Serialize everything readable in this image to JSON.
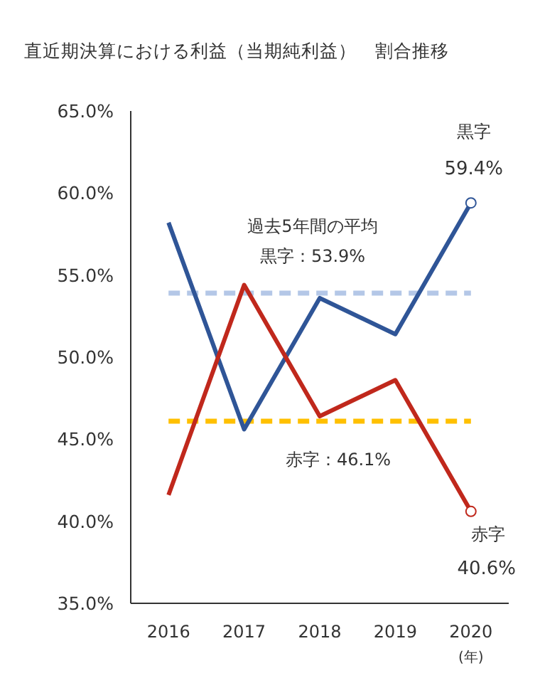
{
  "chart_data": {
    "type": "line",
    "title": "直近期決算における利益（当期純利益）　割合推移",
    "xlabel": "(年)",
    "categories": [
      "2016",
      "2017",
      "2018",
      "2019",
      "2020"
    ],
    "series": [
      {
        "name": "黒字",
        "color": "#2f5597",
        "values": [
          58.2,
          45.6,
          53.6,
          51.4,
          59.4
        ],
        "value_labels": [
          null,
          null,
          null,
          null,
          "59.4%"
        ]
      },
      {
        "name": "赤字",
        "color": "#c0281c",
        "values": [
          41.6,
          54.4,
          46.4,
          48.6,
          40.6
        ],
        "value_labels": [
          null,
          null,
          null,
          null,
          "40.6%"
        ]
      }
    ],
    "ylim": [
      35,
      65
    ],
    "yticks": [
      {
        "value": 35,
        "label": "35.0%"
      },
      {
        "value": 40,
        "label": "40.0%"
      },
      {
        "value": 45,
        "label": "45.0%"
      },
      {
        "value": 50,
        "label": "50.0%"
      },
      {
        "value": 55,
        "label": "55.0%"
      },
      {
        "value": 60,
        "label": "60.0%"
      },
      {
        "value": 65,
        "label": "65.0%"
      }
    ],
    "ref_lines": [
      {
        "axis": "y",
        "value": 53.9,
        "label": "黒字：53.9%",
        "color": "#b4c7e7",
        "line_style": "dashed"
      },
      {
        "axis": "y",
        "value": 46.1,
        "label": "赤字：46.1%",
        "color": "#ffc000",
        "line_style": "dashed"
      }
    ],
    "annotations": [
      "過去5年間の平均"
    ],
    "grid": false,
    "legend": false
  }
}
